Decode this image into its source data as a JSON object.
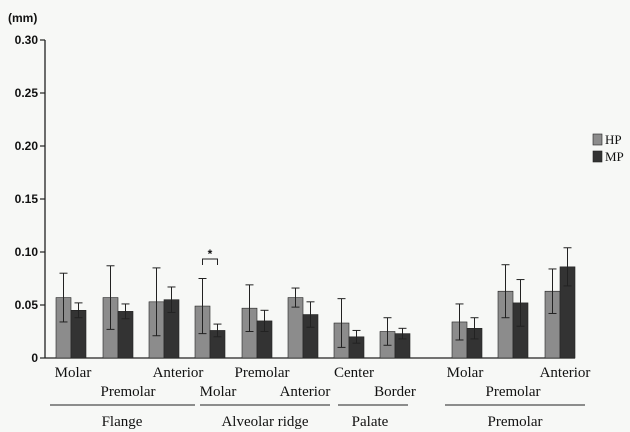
{
  "chart_data": {
    "type": "bar",
    "y_unit": "(mm)",
    "ylim": [
      0,
      0.3
    ],
    "yticks": [
      "0",
      "0.05",
      "0.10",
      "0.15",
      "0.20",
      "0.25",
      "0.30"
    ],
    "grid": false,
    "legend_position": "right",
    "series": [
      {
        "name": "HP",
        "color": "#8c8c8c"
      },
      {
        "name": "MP",
        "color": "#333333"
      }
    ],
    "categories": [
      {
        "label": "Molar",
        "group": "Flange",
        "hp": 0.057,
        "hp_err": 0.023,
        "mp": 0.045,
        "mp_err": 0.007
      },
      {
        "label": "Premolar",
        "group": "Flange",
        "hp": 0.057,
        "hp_err": 0.03,
        "mp": 0.044,
        "mp_err": 0.007
      },
      {
        "label": "Anterior",
        "group": "Flange",
        "hp": 0.053,
        "hp_err": 0.032,
        "mp": 0.055,
        "mp_err": 0.012
      },
      {
        "label": "Molar",
        "group": "Alveolar ridge",
        "hp": 0.049,
        "hp_err": 0.026,
        "mp": 0.026,
        "mp_err": 0.006
      },
      {
        "label": "Premolar",
        "group": "Alveolar ridge",
        "hp": 0.047,
        "hp_err": 0.022,
        "mp": 0.035,
        "mp_err": 0.01
      },
      {
        "label": "Anterior",
        "group": "Alveolar ridge",
        "hp": 0.057,
        "hp_err": 0.009,
        "mp": 0.041,
        "mp_err": 0.012
      },
      {
        "label": "Center",
        "group": "Palate",
        "hp": 0.033,
        "hp_err": 0.023,
        "mp": 0.02,
        "mp_err": 0.006
      },
      {
        "label": "Border",
        "group": "Palate",
        "hp": 0.025,
        "hp_err": 0.013,
        "mp": 0.023,
        "mp_err": 0.005
      },
      {
        "label": "Molar",
        "group": "Premolar",
        "hp": 0.034,
        "hp_err": 0.017,
        "mp": 0.028,
        "mp_err": 0.01
      },
      {
        "label": "Premolar",
        "group": "Premolar",
        "hp": 0.063,
        "hp_err": 0.025,
        "mp": 0.052,
        "mp_err": 0.022
      },
      {
        "label": "Anterior",
        "group": "Premolar",
        "hp": 0.063,
        "hp_err": 0.021,
        "mp": 0.086,
        "mp_err": 0.018
      }
    ],
    "groups": [
      "Flange",
      "Alveolar ridge",
      "Palate",
      "Premolar"
    ],
    "annotations": [
      {
        "text": "*",
        "category_index": 3
      }
    ]
  }
}
